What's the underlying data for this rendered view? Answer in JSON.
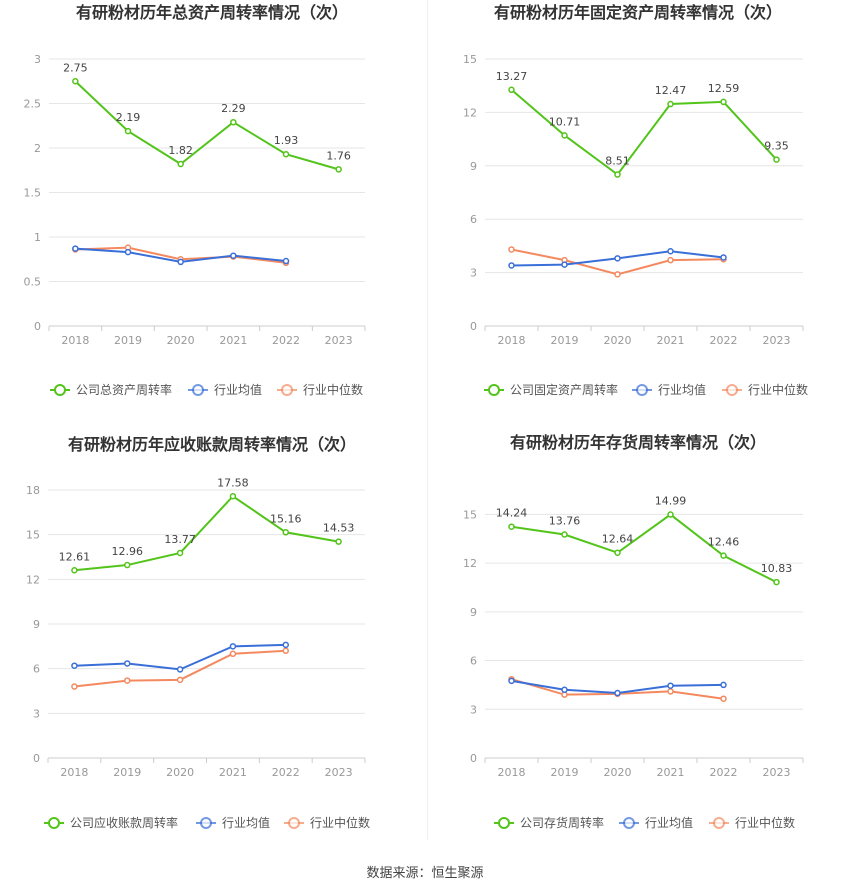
{
  "source": "数据来源：恒生聚源",
  "colors": {
    "company": "#52c41a",
    "avg": "#3a6fd8",
    "median": "#f4895f",
    "grid": "#e6e6e6",
    "axis": "#999999",
    "title": "#333333"
  },
  "chart_data": [
    {
      "type": "line",
      "title": "有研粉材历年总资产周转率情况（次）",
      "categories": [
        "2018",
        "2019",
        "2020",
        "2021",
        "2022",
        "2023"
      ],
      "yticks": [
        "0",
        "0.5",
        "1",
        "1.5",
        "2",
        "2.5",
        "3"
      ],
      "ylim": [
        0,
        3
      ],
      "series": [
        {
          "name": "公司总资产周转率",
          "values": [
            2.75,
            2.19,
            1.82,
            2.29,
            1.93,
            1.76
          ],
          "labels": [
            "2.75",
            "2.19",
            "1.82",
            "2.29",
            "1.93",
            "1.76"
          ]
        },
        {
          "name": "行业均值",
          "values": [
            0.87,
            0.83,
            0.72,
            0.79,
            0.73,
            null
          ]
        },
        {
          "name": "行业中位数",
          "values": [
            0.86,
            0.88,
            0.75,
            0.78,
            0.71,
            null
          ]
        }
      ]
    },
    {
      "type": "line",
      "title": "有研粉材历年固定资产周转率情况（次）",
      "categories": [
        "2018",
        "2019",
        "2020",
        "2021",
        "2022",
        "2023"
      ],
      "yticks": [
        "0",
        "3",
        "6",
        "9",
        "12",
        "15"
      ],
      "ylim": [
        0,
        15
      ],
      "series": [
        {
          "name": "公司固定资产周转率",
          "values": [
            13.27,
            10.71,
            8.51,
            12.47,
            12.59,
            9.35
          ],
          "labels": [
            "13.27",
            "10.71",
            "8.51",
            "12.47",
            "12.59",
            "9.35"
          ]
        },
        {
          "name": "行业均值",
          "values": [
            3.4,
            3.45,
            3.8,
            4.2,
            3.85,
            null
          ]
        },
        {
          "name": "行业中位数",
          "values": [
            4.3,
            3.7,
            2.9,
            3.7,
            3.75,
            null
          ]
        }
      ]
    },
    {
      "type": "line",
      "title": "有研粉材历年应收账款周转率情况（次）",
      "categories": [
        "2018",
        "2019",
        "2020",
        "2021",
        "2022",
        "2023"
      ],
      "yticks": [
        "0",
        "3",
        "6",
        "9",
        "12",
        "15",
        "18"
      ],
      "ylim": [
        0,
        18
      ],
      "series": [
        {
          "name": "公司应收账款周转率",
          "values": [
            12.61,
            12.96,
            13.77,
            17.58,
            15.16,
            14.53
          ],
          "labels": [
            "12.61",
            "12.96",
            "13.77",
            "17.58",
            "15.16",
            "14.53"
          ]
        },
        {
          "name": "行业均值",
          "values": [
            6.2,
            6.35,
            5.95,
            7.5,
            7.6,
            null
          ]
        },
        {
          "name": "行业中位数",
          "values": [
            4.8,
            5.2,
            5.25,
            7.0,
            7.2,
            null
          ]
        }
      ]
    },
    {
      "type": "line",
      "title": "有研粉材历年存货周转率情况（次）",
      "categories": [
        "2018",
        "2019",
        "2020",
        "2021",
        "2022",
        "2023"
      ],
      "yticks": [
        "0",
        "3",
        "6",
        "9",
        "12",
        "15"
      ],
      "ylim": [
        0,
        16.5
      ],
      "series": [
        {
          "name": "公司存货周转率",
          "values": [
            14.24,
            13.76,
            12.64,
            14.99,
            12.46,
            10.83
          ],
          "labels": [
            "14.24",
            "13.76",
            "12.64",
            "14.99",
            "12.46",
            "10.83"
          ]
        },
        {
          "name": "行业均值",
          "values": [
            4.75,
            4.2,
            4.0,
            4.45,
            4.5,
            null
          ]
        },
        {
          "name": "行业中位数",
          "values": [
            4.85,
            3.9,
            3.95,
            4.1,
            3.65,
            null
          ]
        }
      ]
    }
  ]
}
